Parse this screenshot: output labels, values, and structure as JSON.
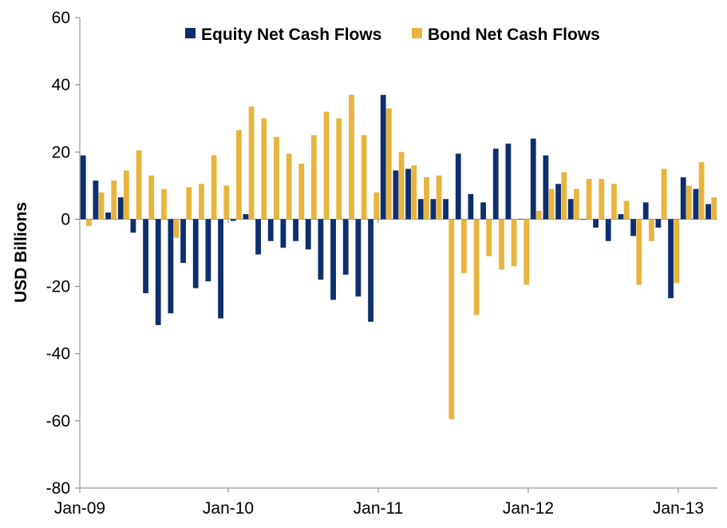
{
  "chart_data": {
    "type": "bar",
    "title": "",
    "ylabel": "USD Billions",
    "xlabel": "",
    "ylim": [
      -80,
      60
    ],
    "yticks": [
      -80,
      -60,
      -40,
      -20,
      0,
      20,
      40,
      60
    ],
    "xtick_labels": [
      {
        "label": "Jan-09",
        "index": 0
      },
      {
        "label": "Jan-10",
        "index": 12
      },
      {
        "label": "Jan-11",
        "index": 24
      },
      {
        "label": "Jan-12",
        "index": 36
      },
      {
        "label": "Jan-13",
        "index": 48
      }
    ],
    "categories": [
      "Jan-09",
      "Feb-09",
      "Mar-09",
      "Apr-09",
      "May-09",
      "Jun-09",
      "Jul-09",
      "Aug-09",
      "Sep-09",
      "Oct-09",
      "Nov-09",
      "Dec-09",
      "Jan-10",
      "Feb-10",
      "Mar-10",
      "Apr-10",
      "May-10",
      "Jun-10",
      "Jul-10",
      "Aug-10",
      "Sep-10",
      "Oct-10",
      "Nov-10",
      "Dec-10",
      "Jan-11",
      "Feb-11",
      "Mar-11",
      "Apr-11",
      "May-11",
      "Jun-11",
      "Jul-11",
      "Aug-11",
      "Sep-11",
      "Oct-11",
      "Nov-11",
      "Dec-11",
      "Jan-12",
      "Feb-12",
      "Mar-12",
      "Apr-12",
      "May-12",
      "Jun-12",
      "Jul-12",
      "Aug-12",
      "Sep-12",
      "Oct-12",
      "Nov-12",
      "Dec-12",
      "Jan-13",
      "Feb-13",
      "Mar-13"
    ],
    "legend_position": "top",
    "series": [
      {
        "name": "Equity Net Cash Flows",
        "color": "#0d2f6e",
        "values": [
          19,
          11.5,
          2,
          6.5,
          -4,
          -22,
          -31.5,
          -28,
          -13,
          -20.5,
          -18.5,
          -29.5,
          -0.5,
          1.5,
          -10.5,
          -6.5,
          -8.5,
          -6.5,
          -9,
          -18,
          -24,
          -16.5,
          -23,
          -30.5,
          37,
          14.5,
          15,
          6,
          6,
          6,
          19.5,
          7.5,
          5,
          21,
          22.5,
          0,
          24,
          19,
          10.5,
          6,
          0,
          -2.5,
          -6.5,
          1.5,
          -5,
          5,
          -2.5,
          -23.5,
          12.5,
          9,
          4.5
        ]
      },
      {
        "name": "Bond Net Cash Flows",
        "color": "#e8b43e",
        "values": [
          -2,
          8,
          11.5,
          14.5,
          20.5,
          13,
          9,
          -5.5,
          9.5,
          10.5,
          19,
          10,
          26.5,
          33.5,
          30,
          24.5,
          19.5,
          16.5,
          25,
          32,
          30,
          37,
          25,
          8,
          33,
          20,
          16,
          12.5,
          13,
          -59.5,
          -16,
          -28.5,
          -11,
          -15,
          -14,
          -19.5,
          2.5,
          9,
          14,
          9,
          12,
          12,
          10.5,
          5.5,
          -19.5,
          -6.5,
          15,
          -19,
          10,
          17,
          6.5
        ]
      }
    ]
  }
}
